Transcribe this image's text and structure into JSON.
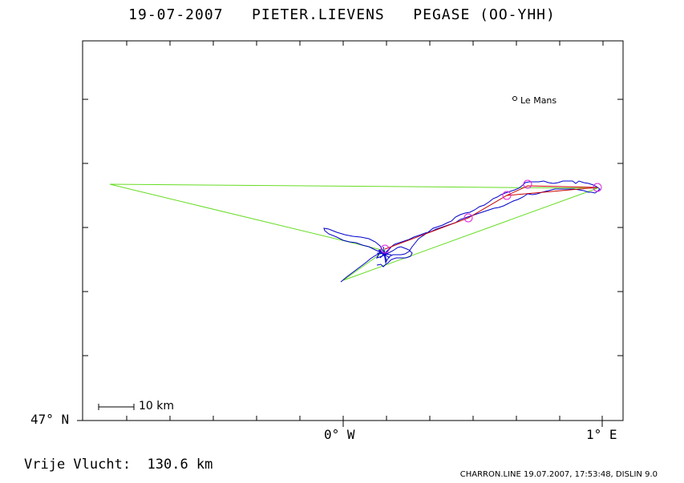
{
  "header": {
    "date": "19-07-2007",
    "pilot": "PIETER.LIEVENS",
    "glider": "PEGASE (OO-YHH)"
  },
  "map": {
    "lat_label": "47° N",
    "lon_west_label": "0° W",
    "lon_east_label": "1° E",
    "scale_label": "10 km",
    "city": "Le Mans",
    "colors": {
      "frame": "#000000",
      "track": "#0000cc",
      "triangle": "#66dd22",
      "route": "#cc0000",
      "turnpoint": "#dd22dd"
    }
  },
  "result": {
    "text": "Vrije Vlucht:  130.6 km"
  },
  "footer": {
    "text": "CHARRON.LINE 19.07.2007, 17:53:48, DISLIN 9.0"
  }
}
